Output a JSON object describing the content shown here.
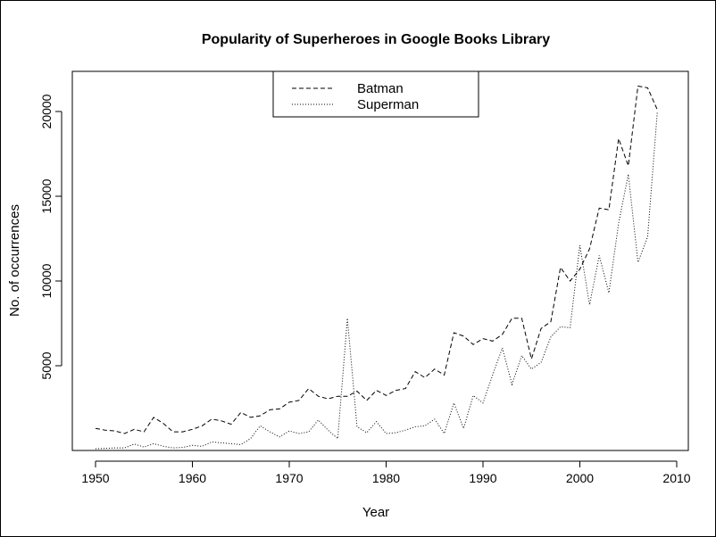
{
  "chart_data": {
    "type": "line",
    "title": "Popularity of Superheroes in Google Books Library",
    "xlabel": "Year",
    "ylabel": "No. of occurrences",
    "xlim": [
      1948.5,
      2010
    ],
    "ylim": [
      0,
      22000
    ],
    "x_ticks": [
      1950,
      1960,
      1970,
      1980,
      1990,
      2000,
      2010
    ],
    "y_ticks": [
      5000,
      10000,
      15000,
      20000
    ],
    "grid": false,
    "legend": "top-center",
    "x": [
      1950,
      1951,
      1952,
      1953,
      1954,
      1955,
      1956,
      1957,
      1958,
      1959,
      1960,
      1961,
      1962,
      1963,
      1964,
      1965,
      1966,
      1967,
      1968,
      1969,
      1970,
      1971,
      1972,
      1973,
      1974,
      1975,
      1976,
      1977,
      1978,
      1979,
      1980,
      1981,
      1982,
      1983,
      1984,
      1985,
      1986,
      1987,
      1988,
      1989,
      1990,
      1991,
      1992,
      1993,
      1994,
      1995,
      1996,
      1997,
      1998,
      1999,
      2000,
      2001,
      2002,
      2003,
      2004,
      2005,
      2006,
      2007,
      2008
    ],
    "series": [
      {
        "name": "Batman",
        "linestyle": "dashed",
        "values": [
          1300,
          1200,
          1150,
          1000,
          1250,
          1100,
          1950,
          1600,
          1100,
          1100,
          1250,
          1450,
          1850,
          1750,
          1550,
          2250,
          1950,
          2050,
          2400,
          2450,
          2850,
          2950,
          3650,
          3200,
          3050,
          3200,
          3200,
          3500,
          2950,
          3550,
          3250,
          3550,
          3650,
          4650,
          4300,
          4800,
          4450,
          6950,
          6750,
          6250,
          6600,
          6450,
          6850,
          7800,
          7800,
          5400,
          7200,
          7600,
          10800,
          10000,
          10700,
          11900,
          14300,
          14200,
          18400,
          16800,
          21500,
          21400,
          20100
        ]
      },
      {
        "name": "Superman",
        "linestyle": "dotted",
        "values": [
          100,
          120,
          150,
          150,
          380,
          200,
          400,
          250,
          150,
          180,
          300,
          250,
          500,
          450,
          400,
          350,
          700,
          1450,
          1100,
          800,
          1150,
          1000,
          1100,
          1800,
          1200,
          700,
          7800,
          1400,
          1050,
          1700,
          1000,
          1050,
          1200,
          1400,
          1450,
          1850,
          1000,
          2800,
          1300,
          3250,
          2800,
          4450,
          6050,
          3900,
          5600,
          4800,
          5200,
          6700,
          7300,
          7250,
          12100,
          8600,
          11500,
          9300,
          13400,
          16300,
          11100,
          12600,
          20000
        ]
      }
    ]
  },
  "colors": {
    "line": "#000000",
    "background": "#ffffff"
  }
}
